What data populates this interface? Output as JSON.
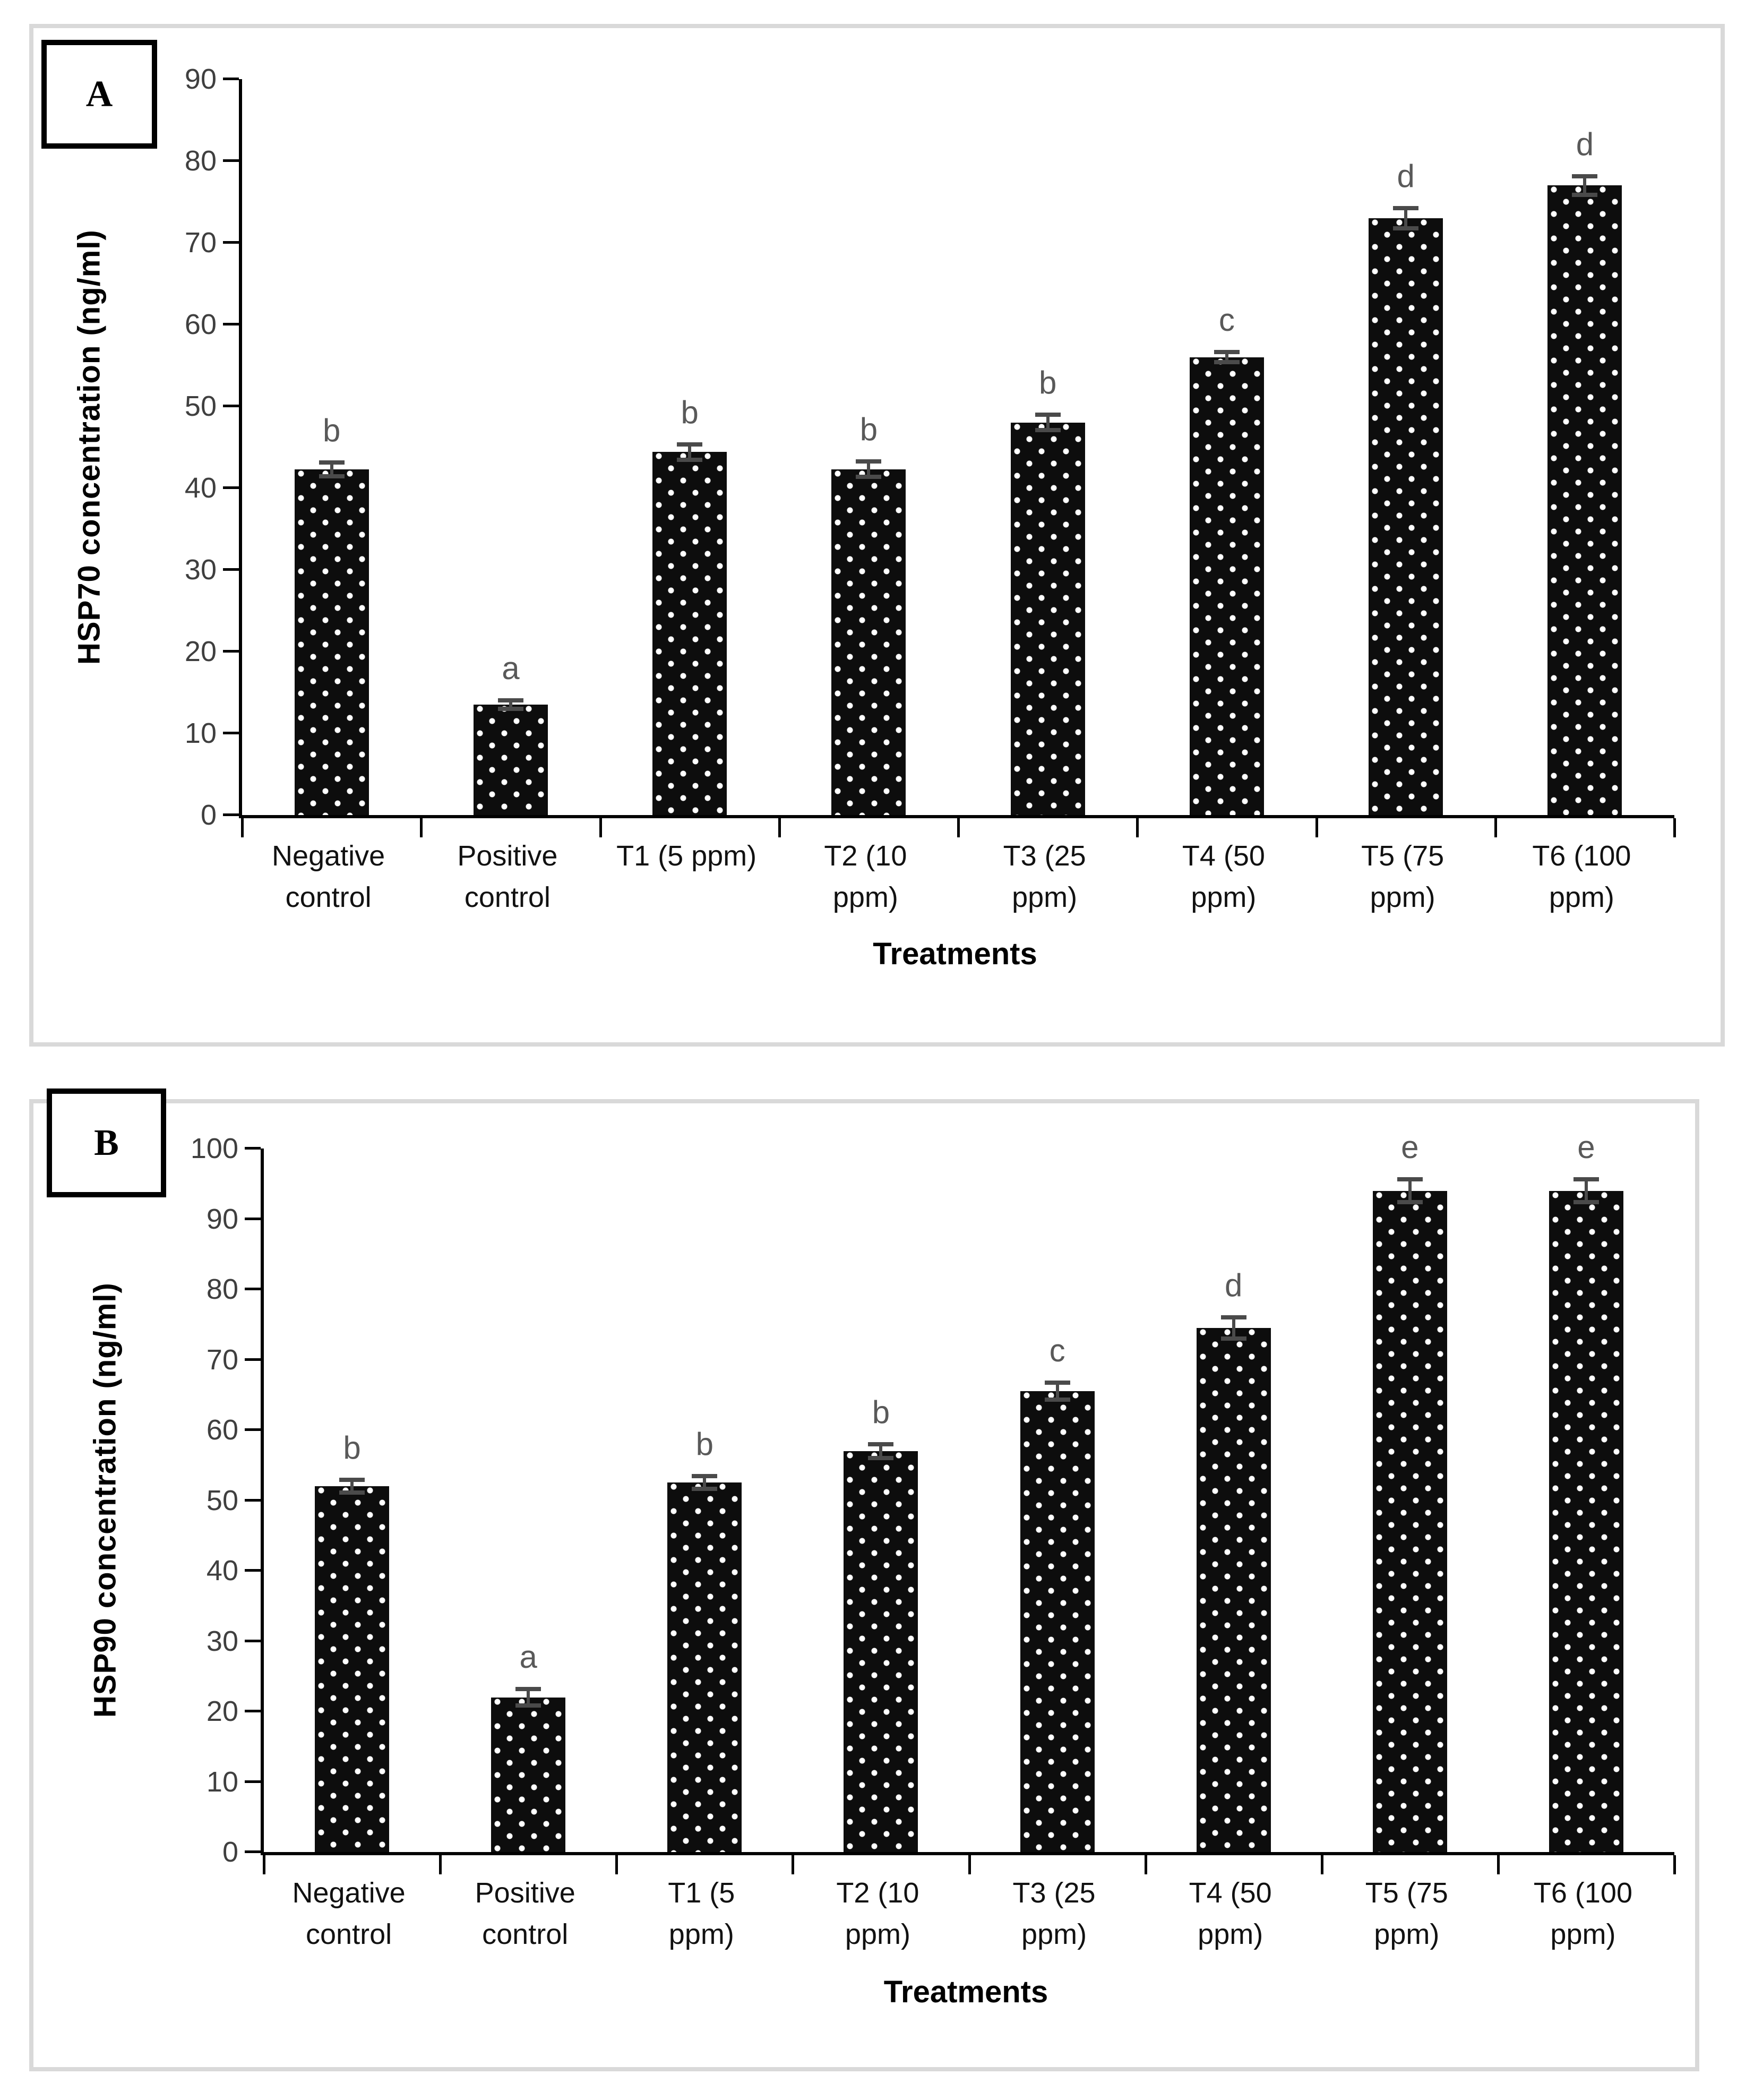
{
  "styles": {
    "panel_border": "#d9d9d9",
    "axis_color": "#000000",
    "tick_label_color": "#3f3f3f",
    "sig_letter_color": "#595959",
    "error_bar_color": "#4a4a4a",
    "bar_fill": "#0d0d0d",
    "bar_dot_color": "#ffffff",
    "background": "#ffffff"
  },
  "chart_data": [
    {
      "type": "bar",
      "panel_label": "A",
      "title": "",
      "ylabel": "HSP70 concentration (ng/ml)",
      "xlabel": "Treatments",
      "ylim": [
        0,
        90
      ],
      "yticks": [
        0,
        10,
        20,
        30,
        40,
        50,
        60,
        70,
        80,
        90
      ],
      "grid": "off",
      "legend": "none",
      "bar_pattern": "black with white dots",
      "categories": [
        "Negative control",
        "Positive control",
        "T1 (5 ppm)",
        "T2 (10 ppm)",
        "T3 (25 ppm)",
        "T4 (50 ppm)",
        "T5 (75 ppm)",
        "T6 (100 ppm)"
      ],
      "category_display_lines": [
        [
          "Negative",
          "control"
        ],
        [
          "Positive",
          "control"
        ],
        [
          "T1 (5 ppm)"
        ],
        [
          "T2 (10",
          "ppm)"
        ],
        [
          "T3 (25",
          "ppm)"
        ],
        [
          "T4 (50",
          "ppm)"
        ],
        [
          "T5 (75",
          "ppm)"
        ],
        [
          "T6 (100",
          "ppm)"
        ]
      ],
      "values": [
        42.3,
        13.5,
        44.4,
        42.3,
        48.0,
        56.0,
        73.0,
        77.0
      ],
      "errors": [
        1.1,
        0.8,
        1.2,
        1.2,
        1.2,
        0.9,
        1.5,
        1.4
      ],
      "sig_letters": [
        "b",
        "a",
        "b",
        "b",
        "b",
        "c",
        "d",
        "d"
      ]
    },
    {
      "type": "bar",
      "panel_label": "B",
      "title": "",
      "ylabel": "HSP90 concentration (ng/ml)",
      "xlabel": "Treatments",
      "ylim": [
        0,
        100
      ],
      "yticks": [
        0,
        10,
        20,
        30,
        40,
        50,
        60,
        70,
        80,
        90,
        100
      ],
      "grid": "off",
      "legend": "none",
      "bar_pattern": "black with white dots",
      "categories": [
        "Negative control",
        "Positive control",
        "T1 (5 ppm)",
        "T2 (10 ppm)",
        "T3 (25 ppm)",
        "T4 (50 ppm)",
        "T5 (75 ppm)",
        "T6 (100 ppm)"
      ],
      "category_display_lines": [
        [
          "Negative",
          "control"
        ],
        [
          "Positive",
          "control"
        ],
        [
          "T1 (5",
          "ppm)"
        ],
        [
          "T2 (10",
          "ppm)"
        ],
        [
          "T3 (25",
          "ppm)"
        ],
        [
          "T4 (50",
          "ppm)"
        ],
        [
          "T5 (75",
          "ppm)"
        ],
        [
          "T6 (100",
          "ppm)"
        ]
      ],
      "values": [
        52.0,
        22.0,
        52.5,
        57.0,
        65.5,
        74.5,
        94.0,
        94.0
      ],
      "errors": [
        1.2,
        1.5,
        1.2,
        1.3,
        1.5,
        1.8,
        1.9,
        1.9
      ],
      "sig_letters": [
        "b",
        "a",
        "b",
        "b",
        "c",
        "d",
        "e",
        "e"
      ]
    }
  ]
}
